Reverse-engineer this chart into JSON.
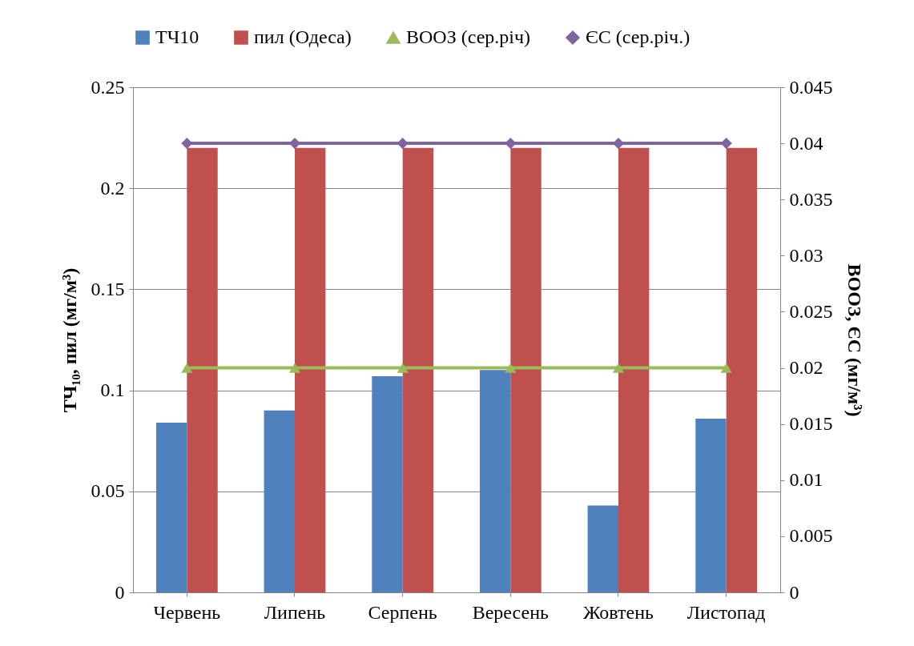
{
  "chart_data": {
    "type": "bar",
    "categories": [
      "Червень",
      "Липень",
      "Серпень",
      "Вересень",
      "Жовтень",
      "Листопад"
    ],
    "ylabel": "ТЧ₁₀, пил (мг/м³)",
    "y2label": "ВООЗ, ЄС (мг/м³)",
    "ylim": [
      0,
      0.25
    ],
    "yticks": [
      0,
      0.05,
      0.1,
      0.15,
      0.2,
      0.25
    ],
    "y2lim": [
      0,
      0.045
    ],
    "y2ticks": [
      0,
      0.005,
      0.01,
      0.015,
      0.02,
      0.025,
      0.03,
      0.035,
      0.04,
      0.045
    ],
    "grid": "y",
    "legend": "top",
    "series": [
      {
        "name": "ТЧ10",
        "color": "#4f81bd",
        "values": [
          0.084,
          0.09,
          0.107,
          0.11,
          0.043,
          0.086
        ]
      },
      {
        "name": "пил (Одеса)",
        "color": "#c0504d",
        "values": [
          0.22,
          0.22,
          0.22,
          0.22,
          0.22,
          0.22
        ]
      },
      {
        "name": "ВООЗ (сер.річ)",
        "type": "line",
        "axis": "y2",
        "marker": "triangle",
        "color": "#9bbb59",
        "values": [
          0.02,
          0.02,
          0.02,
          0.02,
          0.02,
          0.02
        ]
      },
      {
        "name": "ЄС (сер.річ.)",
        "type": "line",
        "axis": "y2",
        "marker": "diamond",
        "color": "#8064a2",
        "values": [
          0.04,
          0.04,
          0.04,
          0.04,
          0.04,
          0.04
        ]
      }
    ]
  }
}
